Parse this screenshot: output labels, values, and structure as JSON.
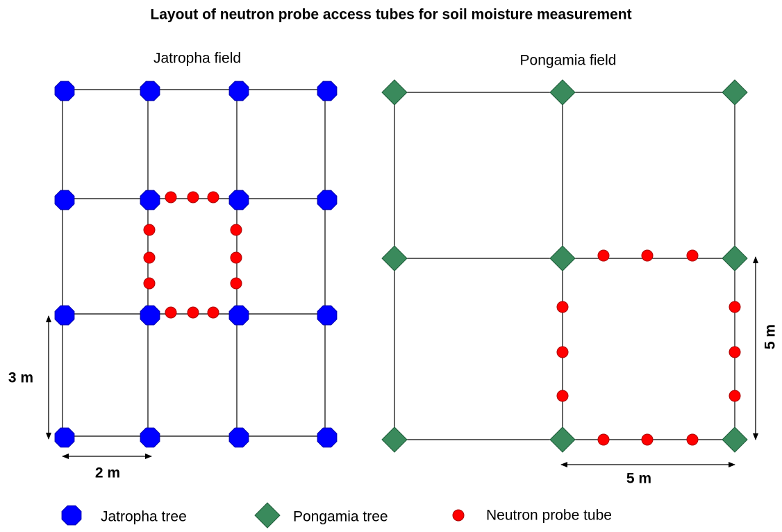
{
  "title": "Layout of neutron probe access tubes for soil moisture measurement",
  "jatropha_field": {
    "label": "Jatropha field",
    "width_label": "2 m",
    "height_label": "3 m"
  },
  "pongamia_field": {
    "label": "Pongamia field",
    "width_label": "5 m",
    "height_label": "5 m"
  },
  "legend": [
    {
      "label": "Jatropha tree"
    },
    {
      "label": "Pongamia tree"
    },
    {
      "label": "Neutron probe tube"
    }
  ]
}
